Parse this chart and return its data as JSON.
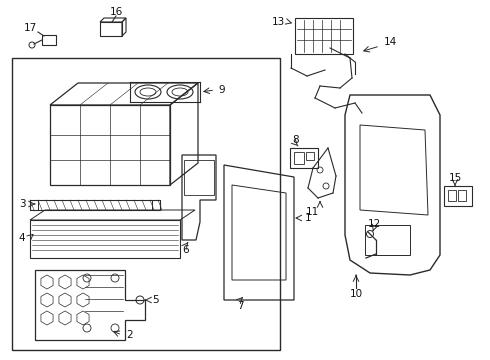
{
  "bg": "#ffffff",
  "lc": "#2a2a2a",
  "figsize": [
    4.9,
    3.6
  ],
  "dpi": 100
}
